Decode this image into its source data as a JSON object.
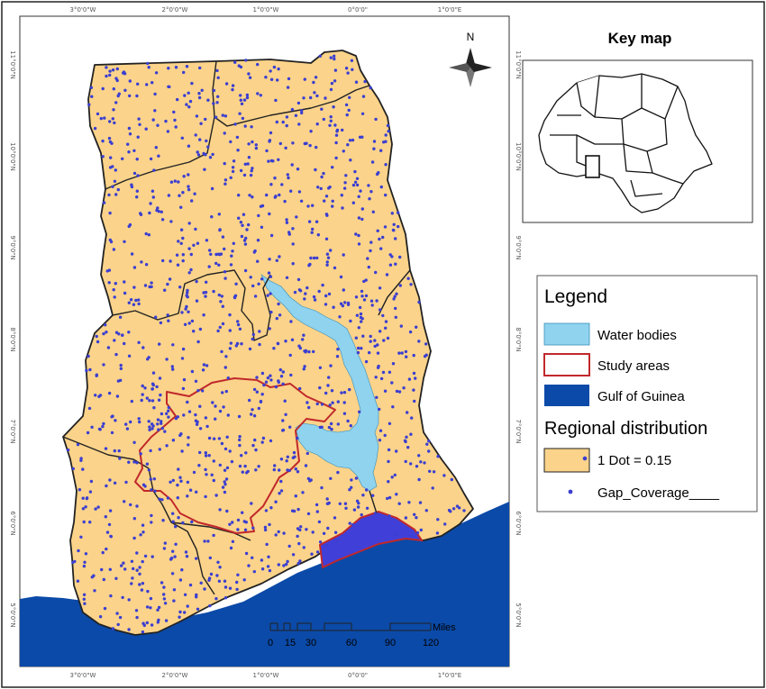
{
  "map": {
    "north_label": "N",
    "top_ticks": [
      "3°0'0\"W",
      "2°0'0\"W",
      "1°0'0\"W",
      "0°0'0\"",
      "1°0'0\"E"
    ],
    "bottom_ticks": [
      "3°0'0\"W",
      "2°0'0\"W",
      "1°0'0\"W",
      "0°0'0\"",
      "1°0'0\"E"
    ],
    "left_ticks": [
      "11°0'0\"N",
      "10°0'0\"N",
      "9°0'0\"N",
      "8°0'0\"N",
      "7°0'0\"N",
      "6°0'0\"N",
      "5°0'0\"N"
    ],
    "right_ticks": [
      "11°0'0\"N",
      "10°0'0\"N",
      "9°0'0\"N",
      "8°0'0\"N",
      "7°0'0\"N",
      "6°0'0\"N",
      "5°0'0\"N"
    ],
    "scale_bar": {
      "unit": "Miles",
      "labels": [
        "0",
        "15",
        "30",
        "60",
        "90",
        "120"
      ]
    },
    "colors": {
      "land": "#fbd38a",
      "sea": "#0b4aa8",
      "water": "#8fd3ef",
      "dots": "#3b3fd0",
      "study_outline": "#c0282b",
      "coastal_fill": "#4040d8"
    }
  },
  "key_map": {
    "title": "Key map"
  },
  "legend": {
    "title": "Legend",
    "items": [
      {
        "label": "Water bodies",
        "swatch": "water"
      },
      {
        "label": "Study areas",
        "swatch": "outline"
      },
      {
        "label": "Gulf of Guinea",
        "swatch": "sea"
      }
    ],
    "subtitle": "Regional distribution",
    "dot_item": "1 Dot = 0.15",
    "gap_item": "Gap_Coverage____"
  }
}
